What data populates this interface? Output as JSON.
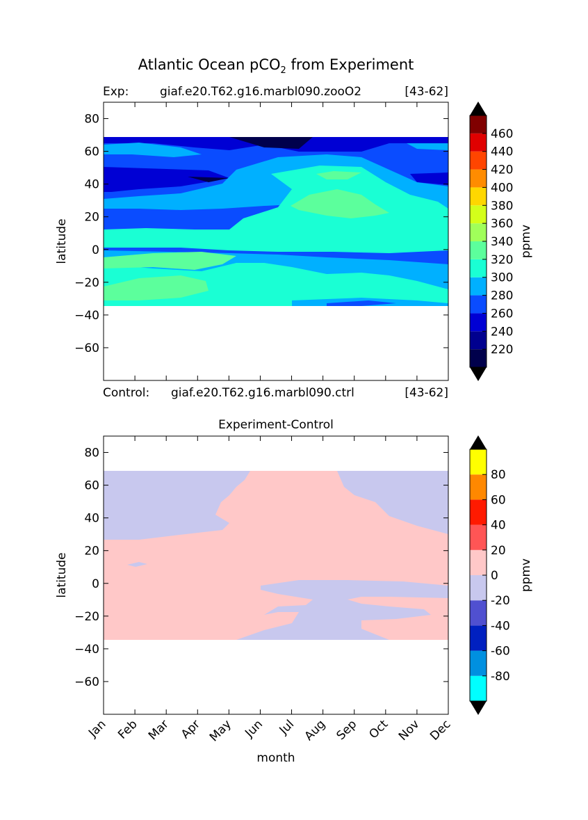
{
  "figure": {
    "title_main": "Atlantic Ocean pCO",
    "title_sub": "2",
    "title_tail": " from Experiment",
    "exp_label": "Exp:",
    "exp_name": "giaf.e20.T62.g16.marbl090.zooO2",
    "exp_years": "[43-62]",
    "ctrl_label": "Control:",
    "ctrl_name": "giaf.e20.T62.g16.marbl090.ctrl",
    "ctrl_years": "[43-62]"
  },
  "chart_data": [
    {
      "type": "contour",
      "title": "Atlantic Ocean pCO2 from Experiment",
      "xlabel": "",
      "ylabel": "latitude",
      "x_categories": [
        "Jan",
        "Feb",
        "Mar",
        "Apr",
        "May",
        "Jun",
        "Jul",
        "Aug",
        "Sep",
        "Oct",
        "Nov",
        "Dec"
      ],
      "ylim": [
        -80,
        90
      ],
      "yticks": [
        80,
        60,
        40,
        20,
        0,
        -20,
        -40,
        -60
      ],
      "ytick_labels": [
        "80",
        "60",
        "40",
        "20",
        "0",
        "−20",
        "−40",
        "−60"
      ],
      "data_lat_range": [
        -34,
        69
      ],
      "colorbar": {
        "label": "ppmv",
        "levels": [
          200,
          220,
          240,
          260,
          280,
          300,
          320,
          340,
          360,
          380,
          400,
          420,
          440,
          460,
          480
        ],
        "tick_values": [
          220,
          240,
          260,
          280,
          300,
          320,
          340,
          360,
          380,
          400,
          420,
          440,
          460
        ],
        "tick_labels": [
          "220",
          "240",
          "260",
          "280",
          "300",
          "320",
          "340",
          "360",
          "380",
          "400",
          "420",
          "440",
          "460"
        ],
        "colors": [
          "#00004c",
          "#00008f",
          "#0000d4",
          "#0a4cff",
          "#00b0ff",
          "#1affd4",
          "#5cff9c",
          "#a0ff5a",
          "#d4ff1a",
          "#ffd700",
          "#ff8c00",
          "#ff4500",
          "#e00000",
          "#800000"
        ],
        "extend": "both"
      }
    },
    {
      "type": "contour",
      "title": "Experiment-Control",
      "xlabel": "month",
      "ylabel": "latitude",
      "x_categories": [
        "Jan",
        "Feb",
        "Mar",
        "Apr",
        "May",
        "Jun",
        "Jul",
        "Aug",
        "Sep",
        "Oct",
        "Nov",
        "Dec"
      ],
      "ylim": [
        -80,
        90
      ],
      "yticks": [
        80,
        60,
        40,
        20,
        0,
        -20,
        -40,
        -60
      ],
      "ytick_labels": [
        "80",
        "60",
        "40",
        "20",
        "0",
        "−20",
        "−40",
        "−60"
      ],
      "data_lat_range": [
        -34,
        69
      ],
      "colorbar": {
        "label": "ppmv",
        "levels": [
          -100,
          -80,
          -60,
          -40,
          -20,
          0,
          20,
          40,
          60,
          80,
          100
        ],
        "tick_values": [
          -80,
          -60,
          -40,
          -20,
          0,
          20,
          40,
          60,
          80
        ],
        "tick_labels": [
          "-80",
          "-60",
          "-40",
          "-20",
          "0",
          "20",
          "40",
          "60",
          "80"
        ],
        "colors": [
          "#00ffff",
          "#0090e0",
          "#0020c0",
          "#5050d0",
          "#c8c8ee",
          "#ffc8c8",
          "#ff5555",
          "#ff1a00",
          "#ff8800",
          "#ffff00"
        ],
        "extend": "both"
      }
    }
  ]
}
